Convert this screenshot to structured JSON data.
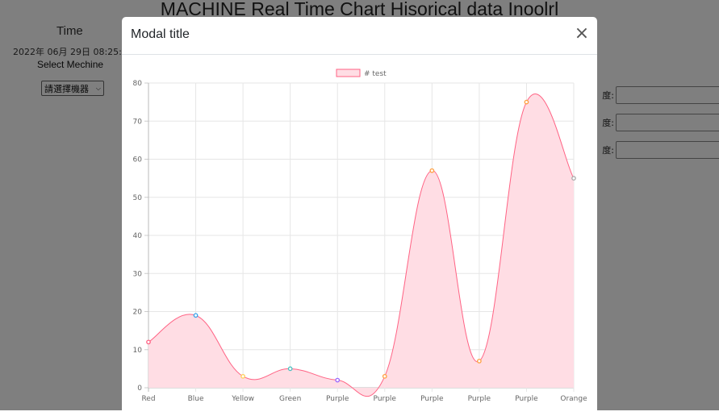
{
  "page": {
    "title": "MACHINE Real Time Chart Hisorical data Inoolrl",
    "time_label": "Time",
    "time_value": "2022年 06月 29日 08:25:",
    "select_label": "Select Mechine",
    "machine_select_value": "請選擇機器",
    "speed_fields": [
      {
        "label": "度:",
        "value": ""
      },
      {
        "label": "度:",
        "value": ""
      },
      {
        "label": "度:",
        "value": ""
      }
    ]
  },
  "modal": {
    "title": "Modal title",
    "close_symbol": "×"
  },
  "chart_data": {
    "type": "area",
    "legend": [
      "# test"
    ],
    "legend_position": "top",
    "categories": [
      "Red",
      "Blue",
      "Yellow",
      "Green",
      "Purple",
      "Purple",
      "Purple",
      "Purple",
      "Purple",
      "Orange"
    ],
    "series": [
      {
        "name": "# test",
        "values": [
          12,
          19,
          3,
          5,
          2,
          3,
          57,
          7,
          75,
          55
        ]
      }
    ],
    "point_colors": [
      "#ff6384",
      "#36a2eb",
      "#ffce56",
      "#4bc0c0",
      "#9966ff",
      "#ff9f40",
      "#ff9f40",
      "#ff9f40",
      "#ff9f40",
      "#aaaaaa"
    ],
    "line_color": "#ff6384",
    "fill_color": "#ffdde4",
    "ylim": [
      0,
      80
    ],
    "yticks": [
      0,
      10,
      20,
      30,
      40,
      50,
      60,
      70,
      80
    ],
    "grid": true
  }
}
